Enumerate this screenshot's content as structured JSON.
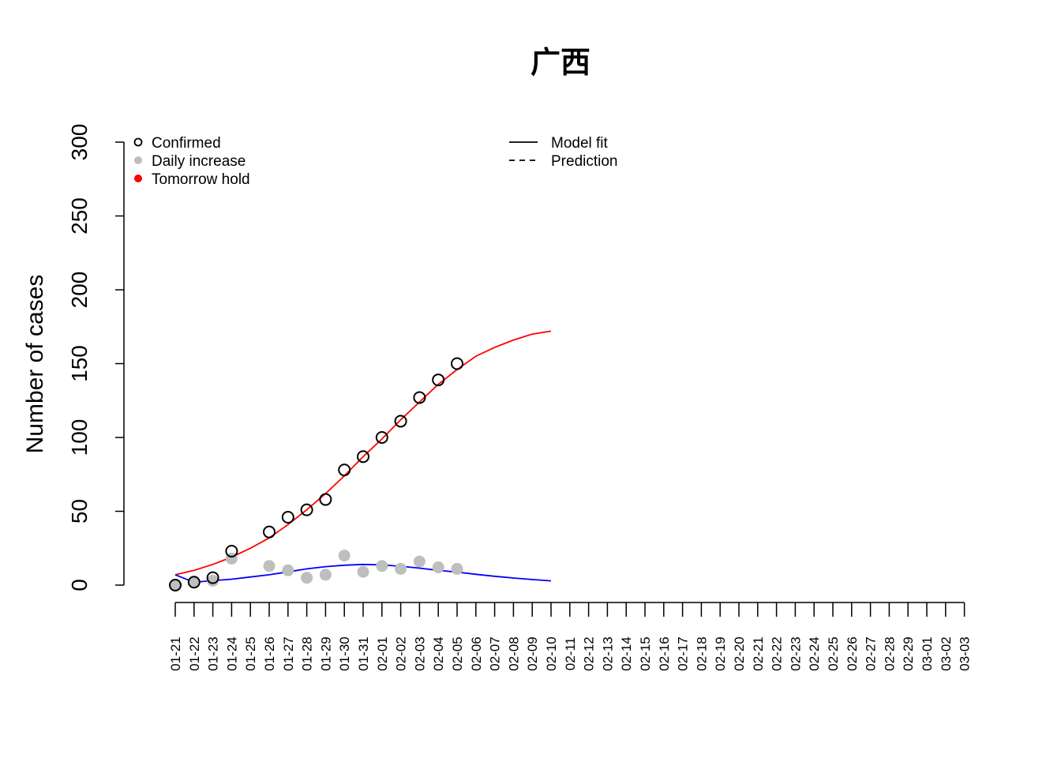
{
  "chart_data": {
    "type": "scatter",
    "title": "广西",
    "xlabel": "",
    "ylabel": "Number of cases",
    "ylim": [
      0,
      300
    ],
    "yticks": [
      "0",
      "50",
      "100",
      "150",
      "200",
      "250",
      "300"
    ],
    "x_dates": [
      "01-21",
      "01-22",
      "01-23",
      "01-24",
      "01-25",
      "01-26",
      "01-27",
      "01-28",
      "01-29",
      "01-30",
      "01-31",
      "02-01",
      "02-02",
      "02-03",
      "02-04",
      "02-05",
      "02-06",
      "02-07",
      "02-08",
      "02-09",
      "02-10",
      "02-11",
      "02-12",
      "02-13",
      "02-14",
      "02-15",
      "02-16",
      "02-17",
      "02-18",
      "02-19",
      "02-20",
      "02-21",
      "02-22",
      "02-23",
      "02-24",
      "02-25",
      "02-26",
      "02-27",
      "02-28",
      "02-29",
      "03-01",
      "03-02",
      "03-03"
    ],
    "series": [
      {
        "name": "Confirmed",
        "style": "open-circle",
        "color": "#000000",
        "points": [
          [
            "01-21",
            0
          ],
          [
            "01-22",
            2
          ],
          [
            "01-23",
            5
          ],
          [
            "01-24",
            23
          ],
          [
            "01-26",
            36
          ],
          [
            "01-27",
            46
          ],
          [
            "01-28",
            51
          ],
          [
            "01-29",
            58
          ],
          [
            "01-30",
            78
          ],
          [
            "01-31",
            87
          ],
          [
            "02-01",
            100
          ],
          [
            "02-02",
            111
          ],
          [
            "02-03",
            127
          ],
          [
            "02-04",
            139
          ],
          [
            "02-05",
            150
          ]
        ]
      },
      {
        "name": "Daily increase",
        "style": "filled-circle",
        "color": "#bebebe",
        "points": [
          [
            "01-21",
            0
          ],
          [
            "01-22",
            2
          ],
          [
            "01-23",
            3
          ],
          [
            "01-24",
            18
          ],
          [
            "01-26",
            13
          ],
          [
            "01-27",
            10
          ],
          [
            "01-28",
            5
          ],
          [
            "01-29",
            7
          ],
          [
            "01-30",
            20
          ],
          [
            "01-31",
            9
          ],
          [
            "02-01",
            13
          ],
          [
            "02-02",
            11
          ],
          [
            "02-03",
            16
          ],
          [
            "02-04",
            12
          ],
          [
            "02-05",
            11
          ]
        ]
      },
      {
        "name": "Tomorrow hold",
        "style": "filled-circle",
        "color": "#ff0000",
        "points": []
      },
      {
        "name": "Model fit",
        "style": "solid-line",
        "color": "#ff0000",
        "points": [
          [
            "01-21",
            7
          ],
          [
            "01-22",
            10
          ],
          [
            "01-23",
            14
          ],
          [
            "01-24",
            19
          ],
          [
            "01-25",
            25
          ],
          [
            "01-26",
            32
          ],
          [
            "01-27",
            41
          ],
          [
            "01-28",
            51
          ],
          [
            "01-29",
            62
          ],
          [
            "01-30",
            74
          ],
          [
            "01-31",
            87
          ],
          [
            "02-01",
            99
          ],
          [
            "02-02",
            112
          ],
          [
            "02-03",
            124
          ],
          [
            "02-04",
            136
          ],
          [
            "02-05",
            146
          ],
          [
            "02-06",
            155
          ],
          [
            "02-07",
            161
          ],
          [
            "02-08",
            166
          ],
          [
            "02-09",
            170
          ],
          [
            "02-10",
            172
          ]
        ]
      },
      {
        "name": "Model fit daily",
        "style": "solid-line",
        "color": "#0000ff",
        "points": [
          [
            "01-21",
            7
          ],
          [
            "01-22",
            2
          ],
          [
            "01-23",
            3
          ],
          [
            "01-24",
            4
          ],
          [
            "01-25",
            5.5
          ],
          [
            "01-26",
            7
          ],
          [
            "01-27",
            9
          ],
          [
            "01-28",
            11
          ],
          [
            "01-29",
            12.5
          ],
          [
            "01-30",
            13.5
          ],
          [
            "01-31",
            14
          ],
          [
            "02-01",
            13.7
          ],
          [
            "02-02",
            12.8
          ],
          [
            "02-03",
            11.5
          ],
          [
            "02-04",
            10
          ],
          [
            "02-05",
            8.8
          ],
          [
            "02-06",
            7.3
          ],
          [
            "02-07",
            6
          ],
          [
            "02-08",
            4.8
          ],
          [
            "02-09",
            3.8
          ],
          [
            "02-10",
            2.9
          ]
        ]
      }
    ],
    "legend_left": [
      {
        "label": "Confirmed",
        "marker": "open-circle",
        "color": "#000000"
      },
      {
        "label": "Daily increase",
        "marker": "filled-circle",
        "color": "#bebebe"
      },
      {
        "label": "Tomorrow hold",
        "marker": "filled-circle",
        "color": "#ff0000"
      }
    ],
    "legend_right": [
      {
        "label": "Model fit",
        "line": "solid"
      },
      {
        "label": "Prediction",
        "line": "dashed"
      }
    ],
    "legend_placement": "top"
  }
}
